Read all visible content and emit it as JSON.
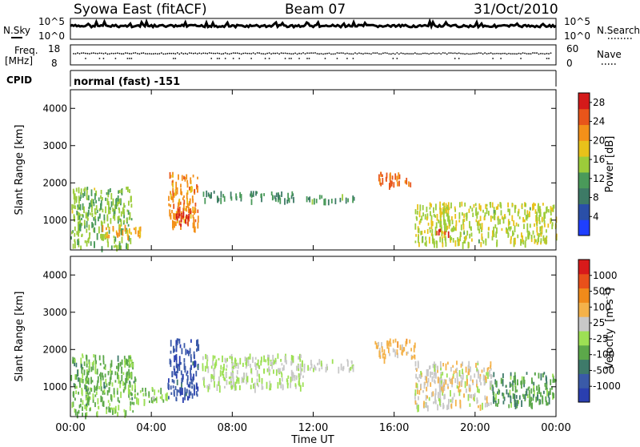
{
  "header": {
    "title": "Syowa East (fitACF)",
    "beam": "Beam 07",
    "date": "31/Oct/2010"
  },
  "sky_panel": {
    "left_label": "N.Sky",
    "right_label": "N.Search",
    "left_ticks": [
      "10^5",
      "10^0"
    ],
    "right_ticks": [
      "10^5",
      "10^0"
    ]
  },
  "freq_panel": {
    "left_label_1": "Freq.",
    "left_label_2": "[MHz]",
    "right_label": "Nave",
    "left_ticks": [
      "18",
      "8"
    ],
    "right_ticks": [
      "60",
      "0"
    ]
  },
  "cpid_panel": {
    "label": "CPID",
    "text": "normal (fast) -151"
  },
  "x_axis": {
    "label": "Time UT",
    "ticks": [
      "00:00",
      "04:00",
      "08:00",
      "12:00",
      "16:00",
      "20:00",
      "00:00"
    ]
  },
  "colors": {
    "power_scale": [
      "#1f3fff",
      "#2a4fa8",
      "#3d7a66",
      "#4a9a5a",
      "#9ccc3a",
      "#e8c21a",
      "#f39019",
      "#e8551a",
      "#d41a1a"
    ],
    "velocity_scale": [
      "#2a3fb0",
      "#3a5aa8",
      "#3e7a6a",
      "#5ca84a",
      "#9de054",
      "#c8c8c8",
      "#f4b24a",
      "#f08a1a",
      "#e8501a",
      "#d81a1a"
    ]
  },
  "chart_data": [
    {
      "type": "heatmap",
      "title": "",
      "xlabel": "",
      "ylabel": "Slant Range [km]",
      "y_ticks": [
        "1000",
        "2000",
        "3000",
        "4000"
      ],
      "ylim": [
        200,
        4500
      ],
      "colorbar_label": "Power [dB]",
      "colorbar_ticks": [
        "4",
        "8",
        "12",
        "16",
        "20",
        "24",
        "28"
      ],
      "clim": [
        0,
        30
      ],
      "echo_regions": [
        {
          "t_start": 0.0,
          "t_end": 3.0,
          "r_min": 300,
          "r_max": 1900,
          "value": 14
        },
        {
          "t_start": 1.5,
          "t_end": 3.5,
          "r_min": 600,
          "r_max": 900,
          "value": 20
        },
        {
          "t_start": 4.8,
          "t_end": 6.3,
          "r_min": 800,
          "r_max": 2300,
          "value": 22
        },
        {
          "t_start": 5.2,
          "t_end": 6.0,
          "r_min": 900,
          "r_max": 1400,
          "value": 28
        },
        {
          "t_start": 6.5,
          "t_end": 11.0,
          "r_min": 1550,
          "r_max": 1800,
          "value": 10
        },
        {
          "t_start": 11.5,
          "t_end": 14.0,
          "r_min": 1550,
          "r_max": 1700,
          "value": 12
        },
        {
          "t_start": 15.0,
          "t_end": 16.8,
          "r_min": 2000,
          "r_max": 2300,
          "value": 24
        },
        {
          "t_start": 17.0,
          "t_end": 24.0,
          "r_min": 400,
          "r_max": 1500,
          "value": 16
        },
        {
          "t_start": 18.0,
          "t_end": 18.8,
          "r_min": 650,
          "r_max": 800,
          "value": 26
        }
      ]
    },
    {
      "type": "heatmap",
      "title": "",
      "xlabel": "Time UT",
      "ylabel": "Slant Range [km]",
      "y_ticks": [
        "1000",
        "2000",
        "3000",
        "4000"
      ],
      "ylim": [
        200,
        4500
      ],
      "colorbar_label": "Velocity [m s-1]",
      "colorbar_label_text": "Velocity",
      "colorbar_label_unit": "[m s",
      "colorbar_label_exp": "-1",
      "colorbar_label_close": "]",
      "colorbar_ticks": [
        "1000",
        "500",
        "100",
        "25",
        "-25",
        "-100",
        "-500",
        "-1000"
      ],
      "clim": [
        -1200,
        1200
      ],
      "echo_regions": [
        {
          "t_start": 0.0,
          "t_end": 3.2,
          "r_min": 300,
          "r_max": 1900,
          "value": -300
        },
        {
          "t_start": 3.2,
          "t_end": 4.8,
          "r_min": 600,
          "r_max": 1000,
          "value": -200
        },
        {
          "t_start": 4.8,
          "t_end": 6.3,
          "r_min": 700,
          "r_max": 2300,
          "value": -900
        },
        {
          "t_start": 6.5,
          "t_end": 11.5,
          "r_min": 1000,
          "r_max": 1900,
          "value": 0
        },
        {
          "t_start": 11.5,
          "t_end": 14.0,
          "r_min": 1500,
          "r_max": 1750,
          "value": 0
        },
        {
          "t_start": 15.0,
          "t_end": 17.0,
          "r_min": 1800,
          "r_max": 2300,
          "value": 300
        },
        {
          "t_start": 17.0,
          "t_end": 20.8,
          "r_min": 500,
          "r_max": 1700,
          "value": 150
        },
        {
          "t_start": 20.8,
          "t_end": 24.0,
          "r_min": 500,
          "r_max": 1400,
          "value": -400
        }
      ]
    }
  ]
}
